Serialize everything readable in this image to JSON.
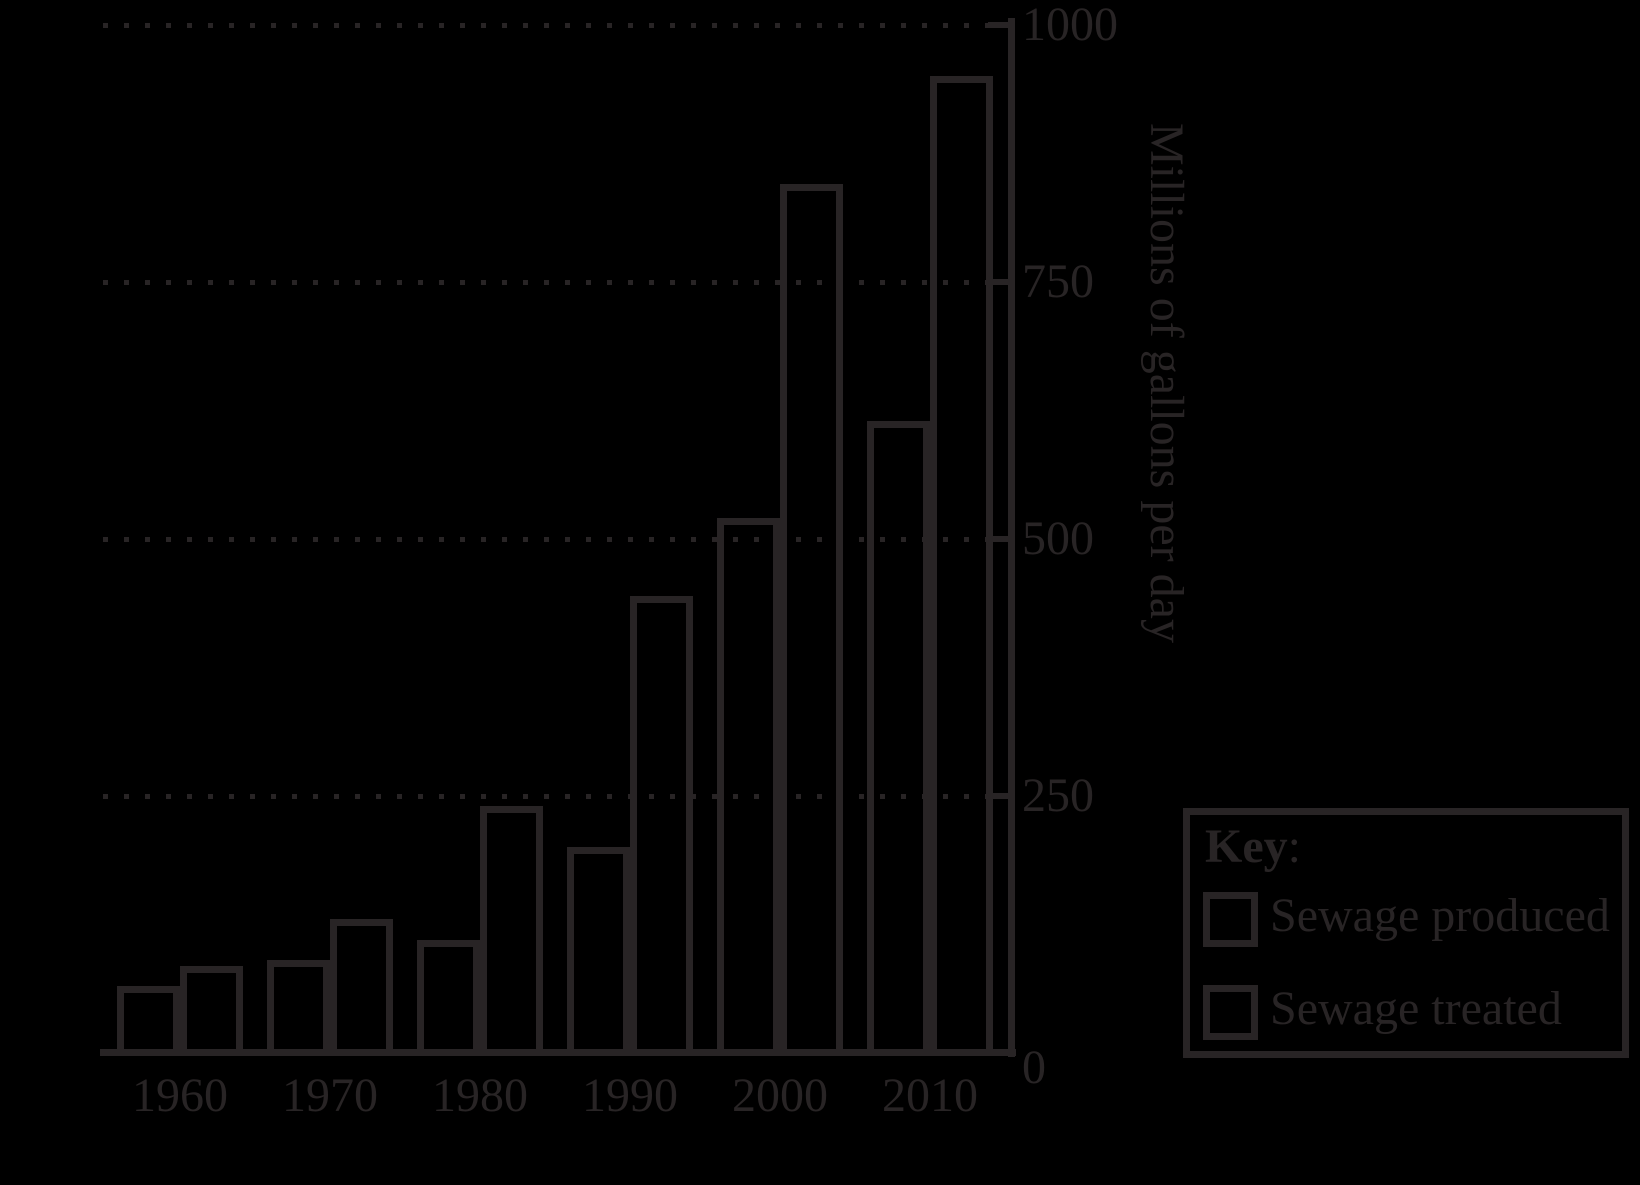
{
  "chart_data": {
    "type": "bar",
    "categories": [
      "1960",
      "1970",
      "1980",
      "1990",
      "2000",
      "2010"
    ],
    "series": [
      {
        "name": "Sewage produced",
        "values": [
          65,
          90,
          110,
          200,
          520,
          615
        ]
      },
      {
        "name": "Sewage treated",
        "values": [
          85,
          130,
          240,
          445,
          845,
          950
        ]
      }
    ],
    "title": "",
    "xlabel": "",
    "ylabel": "Millions of gallons per day",
    "ylim": [
      0,
      1000
    ],
    "yticks": [
      0,
      250,
      500,
      750,
      1000
    ],
    "ytick_labels": [
      "0",
      "250",
      "500",
      "750",
      "1000"
    ],
    "grid": "horizontal-dotted",
    "bar_style": "outlined-unfilled",
    "legend_position": "bottom-right"
  },
  "key": {
    "title": "Key",
    "colon": ":",
    "entries": [
      "Sewage produced",
      "Sewage treated"
    ]
  },
  "colors": {
    "background": "#000000",
    "ink": "#282425"
  }
}
